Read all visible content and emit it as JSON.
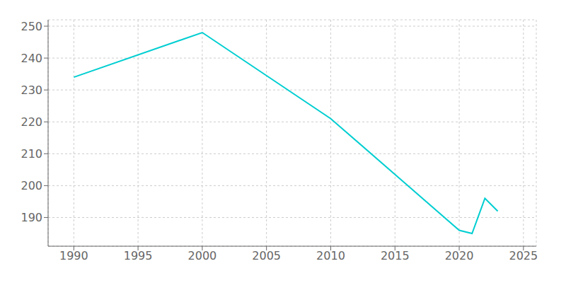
{
  "chart_data": {
    "type": "line",
    "x": [
      1990,
      2000,
      2010,
      2020,
      2021,
      2022,
      2023
    ],
    "values": [
      234,
      248,
      221,
      186,
      185,
      196,
      192
    ],
    "color": "#00CED1",
    "xlim": [
      1988,
      2026
    ],
    "ylim": [
      181,
      252
    ],
    "xticks": [
      1990,
      1995,
      2000,
      2005,
      2010,
      2015,
      2020,
      2025
    ],
    "yticks": [
      190,
      200,
      210,
      220,
      230,
      240,
      250
    ],
    "grid": true
  }
}
